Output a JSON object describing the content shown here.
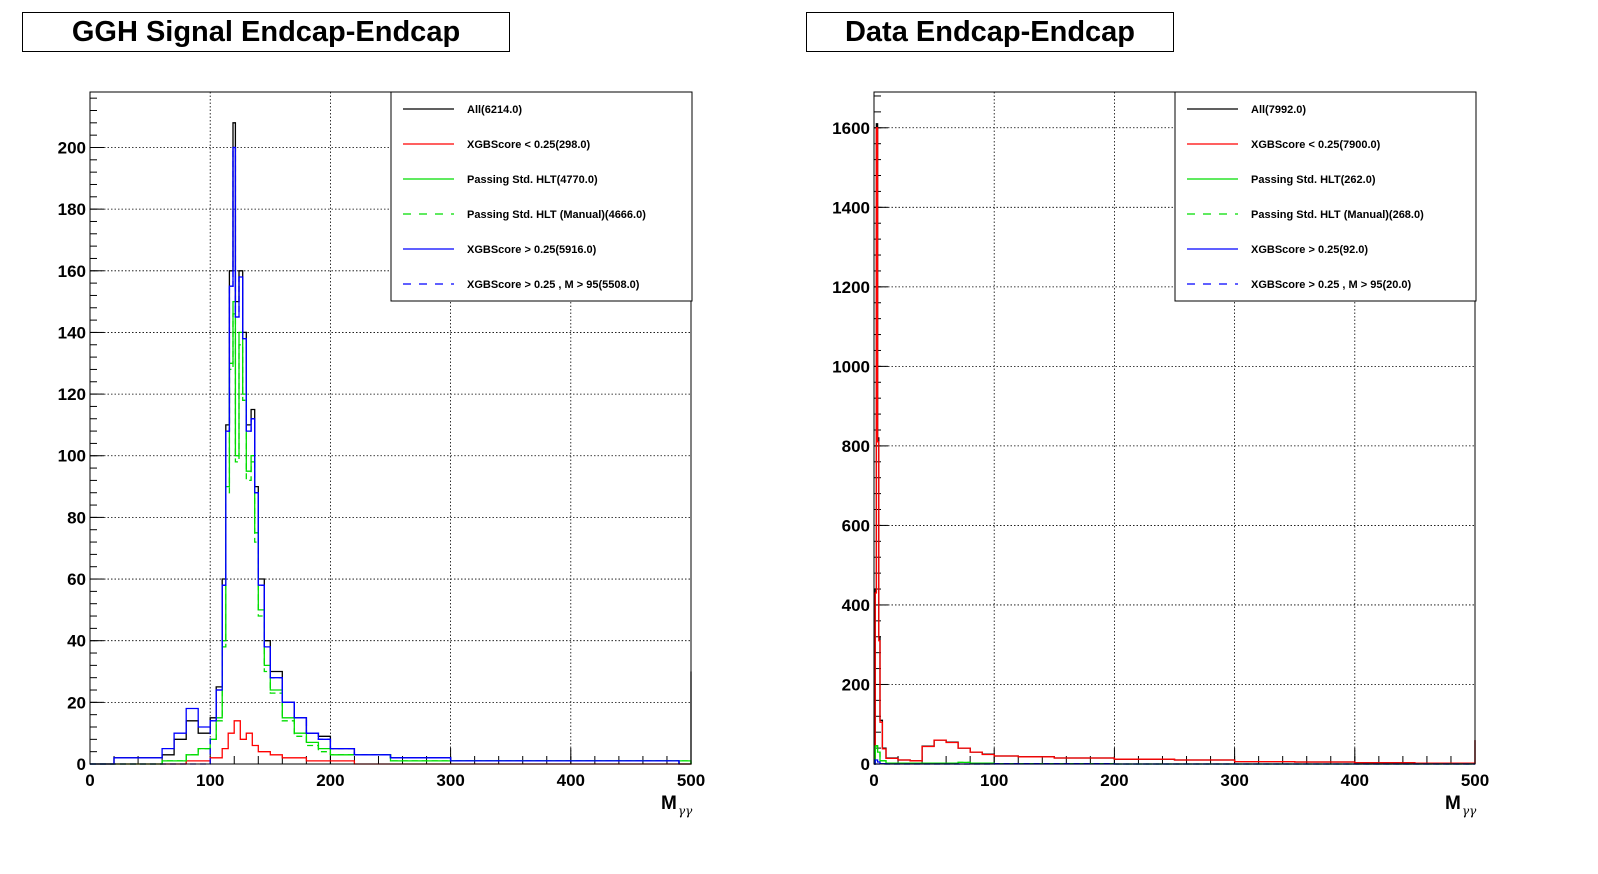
{
  "chart_data": [
    {
      "type": "histogram",
      "title": "GGH Signal Endcap-Endcap",
      "xlabel": "M",
      "xlabel_sub": "γγ",
      "ylabel": "",
      "xlim": [
        0,
        500
      ],
      "ylim": [
        0,
        218
      ],
      "xticks": [
        0,
        100,
        200,
        300,
        400,
        500
      ],
      "yticks": [
        0,
        20,
        40,
        60,
        80,
        100,
        120,
        140,
        160,
        180,
        200
      ],
      "grid": true,
      "legend_position": "top-right",
      "series": [
        {
          "name": "All(6214.0)",
          "color": "#000000",
          "dash": "solid",
          "points": [
            [
              0,
              0
            ],
            [
              20,
              2
            ],
            [
              40,
              2
            ],
            [
              60,
              3
            ],
            [
              70,
              8
            ],
            [
              80,
              14
            ],
            [
              90,
              10
            ],
            [
              100,
              15
            ],
            [
              105,
              25
            ],
            [
              110,
              60
            ],
            [
              113,
              110
            ],
            [
              116,
              160
            ],
            [
              119,
              208
            ],
            [
              121,
              150
            ],
            [
              124,
              160
            ],
            [
              127,
              140
            ],
            [
              130,
              110
            ],
            [
              134,
              115
            ],
            [
              137,
              90
            ],
            [
              140,
              60
            ],
            [
              145,
              40
            ],
            [
              150,
              30
            ],
            [
              160,
              20
            ],
            [
              170,
              15
            ],
            [
              180,
              10
            ],
            [
              190,
              9
            ],
            [
              200,
              5
            ],
            [
              220,
              3
            ],
            [
              250,
              2
            ],
            [
              300,
              1
            ],
            [
              350,
              1
            ],
            [
              400,
              1
            ],
            [
              450,
              1
            ],
            [
              490,
              0
            ],
            [
              500,
              30
            ]
          ]
        },
        {
          "name": "XGBScore < 0.25(298.0)",
          "color": "#ff0000",
          "dash": "solid",
          "points": [
            [
              0,
              0
            ],
            [
              60,
              0
            ],
            [
              80,
              1
            ],
            [
              100,
              2
            ],
            [
              110,
              5
            ],
            [
              115,
              10
            ],
            [
              120,
              14
            ],
            [
              125,
              8
            ],
            [
              130,
              10
            ],
            [
              135,
              6
            ],
            [
              140,
              4
            ],
            [
              150,
              3
            ],
            [
              160,
              2
            ],
            [
              180,
              1
            ],
            [
              200,
              1
            ],
            [
              220,
              0
            ],
            [
              300,
              0
            ],
            [
              500,
              0
            ]
          ]
        },
        {
          "name": "Passing Std. HLT(4770.0)",
          "color": "#00dd00",
          "dash": "solid",
          "points": [
            [
              0,
              0
            ],
            [
              60,
              1
            ],
            [
              80,
              3
            ],
            [
              90,
              5
            ],
            [
              100,
              8
            ],
            [
              105,
              15
            ],
            [
              110,
              40
            ],
            [
              113,
              90
            ],
            [
              116,
              130
            ],
            [
              119,
              150
            ],
            [
              121,
              100
            ],
            [
              124,
              140
            ],
            [
              127,
              120
            ],
            [
              130,
              95
            ],
            [
              134,
              100
            ],
            [
              137,
              75
            ],
            [
              140,
              50
            ],
            [
              145,
              32
            ],
            [
              150,
              24
            ],
            [
              160,
              15
            ],
            [
              170,
              10
            ],
            [
              180,
              7
            ],
            [
              190,
              5
            ],
            [
              200,
              3
            ],
            [
              250,
              1
            ],
            [
              300,
              1
            ],
            [
              500,
              0
            ]
          ]
        },
        {
          "name": "Passing Std. HLT (Manual)(4666.0)",
          "color": "#00dd00",
          "dash": "dashed",
          "points": [
            [
              0,
              0
            ],
            [
              60,
              1
            ],
            [
              80,
              3
            ],
            [
              90,
              5
            ],
            [
              100,
              8
            ],
            [
              105,
              14
            ],
            [
              110,
              38
            ],
            [
              113,
              88
            ],
            [
              116,
              128
            ],
            [
              119,
              146
            ],
            [
              121,
              98
            ],
            [
              124,
              136
            ],
            [
              127,
              118
            ],
            [
              130,
              92
            ],
            [
              134,
              98
            ],
            [
              137,
              72
            ],
            [
              140,
              48
            ],
            [
              145,
              30
            ],
            [
              150,
              23
            ],
            [
              160,
              14
            ],
            [
              170,
              9
            ],
            [
              180,
              6
            ],
            [
              190,
              4
            ],
            [
              200,
              3
            ],
            [
              250,
              1
            ],
            [
              300,
              1
            ],
            [
              500,
              0
            ]
          ]
        },
        {
          "name": "XGBScore > 0.25(5916.0)",
          "color": "#0000ff",
          "dash": "solid",
          "points": [
            [
              0,
              0
            ],
            [
              20,
              2
            ],
            [
              40,
              2
            ],
            [
              60,
              5
            ],
            [
              70,
              10
            ],
            [
              80,
              18
            ],
            [
              90,
              12
            ],
            [
              100,
              14
            ],
            [
              105,
              24
            ],
            [
              110,
              58
            ],
            [
              113,
              108
            ],
            [
              116,
              155
            ],
            [
              119,
              200
            ],
            [
              121,
              145
            ],
            [
              124,
              158
            ],
            [
              127,
              138
            ],
            [
              130,
              108
            ],
            [
              134,
              112
            ],
            [
              137,
              88
            ],
            [
              140,
              58
            ],
            [
              145,
              38
            ],
            [
              150,
              28
            ],
            [
              160,
              20
            ],
            [
              170,
              15
            ],
            [
              180,
              10
            ],
            [
              190,
              8
            ],
            [
              200,
              5
            ],
            [
              220,
              3
            ],
            [
              250,
              2
            ],
            [
              300,
              1
            ],
            [
              350,
              1
            ],
            [
              400,
              1
            ],
            [
              450,
              1
            ],
            [
              490,
              0
            ]
          ]
        },
        {
          "name": "XGBScore > 0.25 , M > 95(5508.0)",
          "color": "#0000ff",
          "dash": "dashed",
          "points": [
            [
              0,
              0
            ],
            [
              95,
              0
            ],
            [
              100,
              14
            ],
            [
              105,
              24
            ],
            [
              110,
              58
            ],
            [
              113,
              108
            ],
            [
              116,
              155
            ],
            [
              119,
              200
            ],
            [
              121,
              145
            ],
            [
              124,
              158
            ],
            [
              127,
              138
            ],
            [
              130,
              108
            ],
            [
              134,
              112
            ],
            [
              137,
              88
            ],
            [
              140,
              58
            ],
            [
              145,
              38
            ],
            [
              150,
              28
            ],
            [
              160,
              20
            ],
            [
              170,
              15
            ],
            [
              180,
              10
            ],
            [
              190,
              8
            ],
            [
              200,
              5
            ],
            [
              220,
              3
            ],
            [
              250,
              2
            ],
            [
              300,
              1
            ],
            [
              350,
              1
            ],
            [
              400,
              1
            ],
            [
              450,
              1
            ],
            [
              490,
              0
            ]
          ]
        }
      ]
    },
    {
      "type": "histogram",
      "title": "Data Endcap-Endcap",
      "xlabel": "M",
      "xlabel_sub": "γγ",
      "ylabel": "",
      "xlim": [
        0,
        500
      ],
      "ylim": [
        0,
        1690
      ],
      "xticks": [
        0,
        100,
        200,
        300,
        400,
        500
      ],
      "yticks": [
        0,
        200,
        400,
        600,
        800,
        1000,
        1200,
        1400,
        1600
      ],
      "grid": true,
      "legend_position": "top-right",
      "series": [
        {
          "name": "All(7992.0)",
          "color": "#000000",
          "dash": "solid",
          "points": [
            [
              0,
              0
            ],
            [
              1,
              440
            ],
            [
              2,
              1610
            ],
            [
              3,
              820
            ],
            [
              4,
              320
            ],
            [
              5,
              110
            ],
            [
              7,
              40
            ],
            [
              10,
              15
            ],
            [
              20,
              10
            ],
            [
              30,
              8
            ],
            [
              40,
              45
            ],
            [
              50,
              60
            ],
            [
              60,
              55
            ],
            [
              70,
              40
            ],
            [
              80,
              30
            ],
            [
              90,
              25
            ],
            [
              100,
              20
            ],
            [
              120,
              18
            ],
            [
              150,
              15
            ],
            [
              200,
              12
            ],
            [
              250,
              10
            ],
            [
              300,
              6
            ],
            [
              350,
              5
            ],
            [
              400,
              3
            ],
            [
              450,
              2
            ],
            [
              499,
              2
            ],
            [
              500,
              60
            ]
          ]
        },
        {
          "name": "XGBScore < 0.25(7900.0)",
          "color": "#ff0000",
          "dash": "solid",
          "points": [
            [
              0,
              0
            ],
            [
              1,
              430
            ],
            [
              2,
              1600
            ],
            [
              3,
              810
            ],
            [
              4,
              310
            ],
            [
              5,
              105
            ],
            [
              7,
              38
            ],
            [
              10,
              14
            ],
            [
              20,
              10
            ],
            [
              30,
              8
            ],
            [
              40,
              44
            ],
            [
              50,
              60
            ],
            [
              60,
              54
            ],
            [
              70,
              40
            ],
            [
              80,
              30
            ],
            [
              90,
              24
            ],
            [
              100,
              20
            ],
            [
              120,
              18
            ],
            [
              150,
              15
            ],
            [
              200,
              12
            ],
            [
              250,
              10
            ],
            [
              300,
              6
            ],
            [
              350,
              5
            ],
            [
              400,
              3
            ],
            [
              450,
              2
            ],
            [
              499,
              2
            ],
            [
              500,
              60
            ]
          ]
        },
        {
          "name": "Passing Std. HLT(262.0)",
          "color": "#00dd00",
          "dash": "solid",
          "points": [
            [
              0,
              0
            ],
            [
              1,
              45
            ],
            [
              3,
              30
            ],
            [
              5,
              8
            ],
            [
              10,
              2
            ],
            [
              50,
              2
            ],
            [
              70,
              4
            ],
            [
              80,
              2
            ],
            [
              100,
              1
            ],
            [
              200,
              0
            ],
            [
              500,
              0
            ]
          ]
        },
        {
          "name": "Passing Std. HLT (Manual)(268.0)",
          "color": "#00dd00",
          "dash": "dashed",
          "points": [
            [
              0,
              0
            ],
            [
              1,
              46
            ],
            [
              3,
              30
            ],
            [
              5,
              8
            ],
            [
              10,
              2
            ],
            [
              50,
              2
            ],
            [
              70,
              4
            ],
            [
              80,
              2
            ],
            [
              100,
              1
            ],
            [
              200,
              0
            ],
            [
              500,
              0
            ]
          ]
        },
        {
          "name": "XGBScore > 0.25(92.0)",
          "color": "#0000ff",
          "dash": "solid",
          "points": [
            [
              0,
              0
            ],
            [
              1,
              10
            ],
            [
              3,
              5
            ],
            [
              5,
              1
            ],
            [
              10,
              0
            ],
            [
              500,
              0
            ]
          ]
        },
        {
          "name": "XGBScore > 0.25 , M > 95(20.0)",
          "color": "#0000ff",
          "dash": "dashed",
          "points": [
            [
              0,
              0
            ],
            [
              100,
              1
            ],
            [
              150,
              1
            ],
            [
              200,
              0
            ],
            [
              500,
              0
            ]
          ]
        }
      ]
    }
  ]
}
